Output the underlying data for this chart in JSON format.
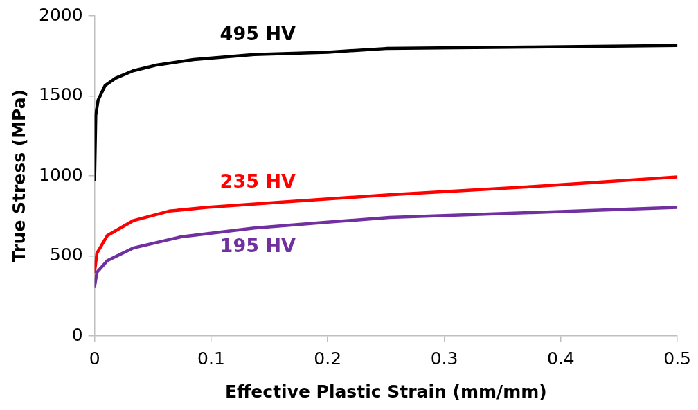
{
  "chart_data": {
    "type": "line",
    "xlabel": "Effective Plastic Strain (mm/mm)",
    "ylabel": "True Stress (MPa)",
    "xlim": [
      0,
      0.5
    ],
    "xticks": [
      0,
      0.1,
      0.2,
      0.3,
      0.4,
      0.5
    ],
    "ylim": [
      0,
      2000
    ],
    "yticks": [
      0,
      500,
      1000,
      1500,
      2000
    ],
    "grid": false,
    "legend": false,
    "marker": "none",
    "line_style": "solid",
    "series": [
      {
        "name": "495 HV",
        "color": "#000000",
        "x": [
          0,
          0.001,
          0.003,
          0.009,
          0.018,
          0.033,
          0.054,
          0.085,
          0.137,
          0.2,
          0.25,
          0.375,
          0.5
        ],
        "values": [
          975,
          1380,
          1473,
          1565,
          1611,
          1657,
          1694,
          1727,
          1759,
          1773,
          1796,
          1805,
          1815
        ]
      },
      {
        "name": "235 HV",
        "color": "#ff0000",
        "x": [
          0,
          0.002,
          0.011,
          0.033,
          0.064,
          0.096,
          0.159,
          0.253,
          0.375,
          0.5
        ],
        "values": [
          402,
          517,
          628,
          720,
          780,
          803,
          836,
          882,
          933,
          993
        ]
      },
      {
        "name": "195 HV",
        "color": "#7030a0",
        "x": [
          0,
          0.002,
          0.011,
          0.033,
          0.074,
          0.137,
          0.2,
          0.253,
          0.375,
          0.5
        ],
        "values": [
          309,
          397,
          471,
          549,
          619,
          674,
          711,
          740,
          771,
          803
        ]
      }
    ]
  }
}
